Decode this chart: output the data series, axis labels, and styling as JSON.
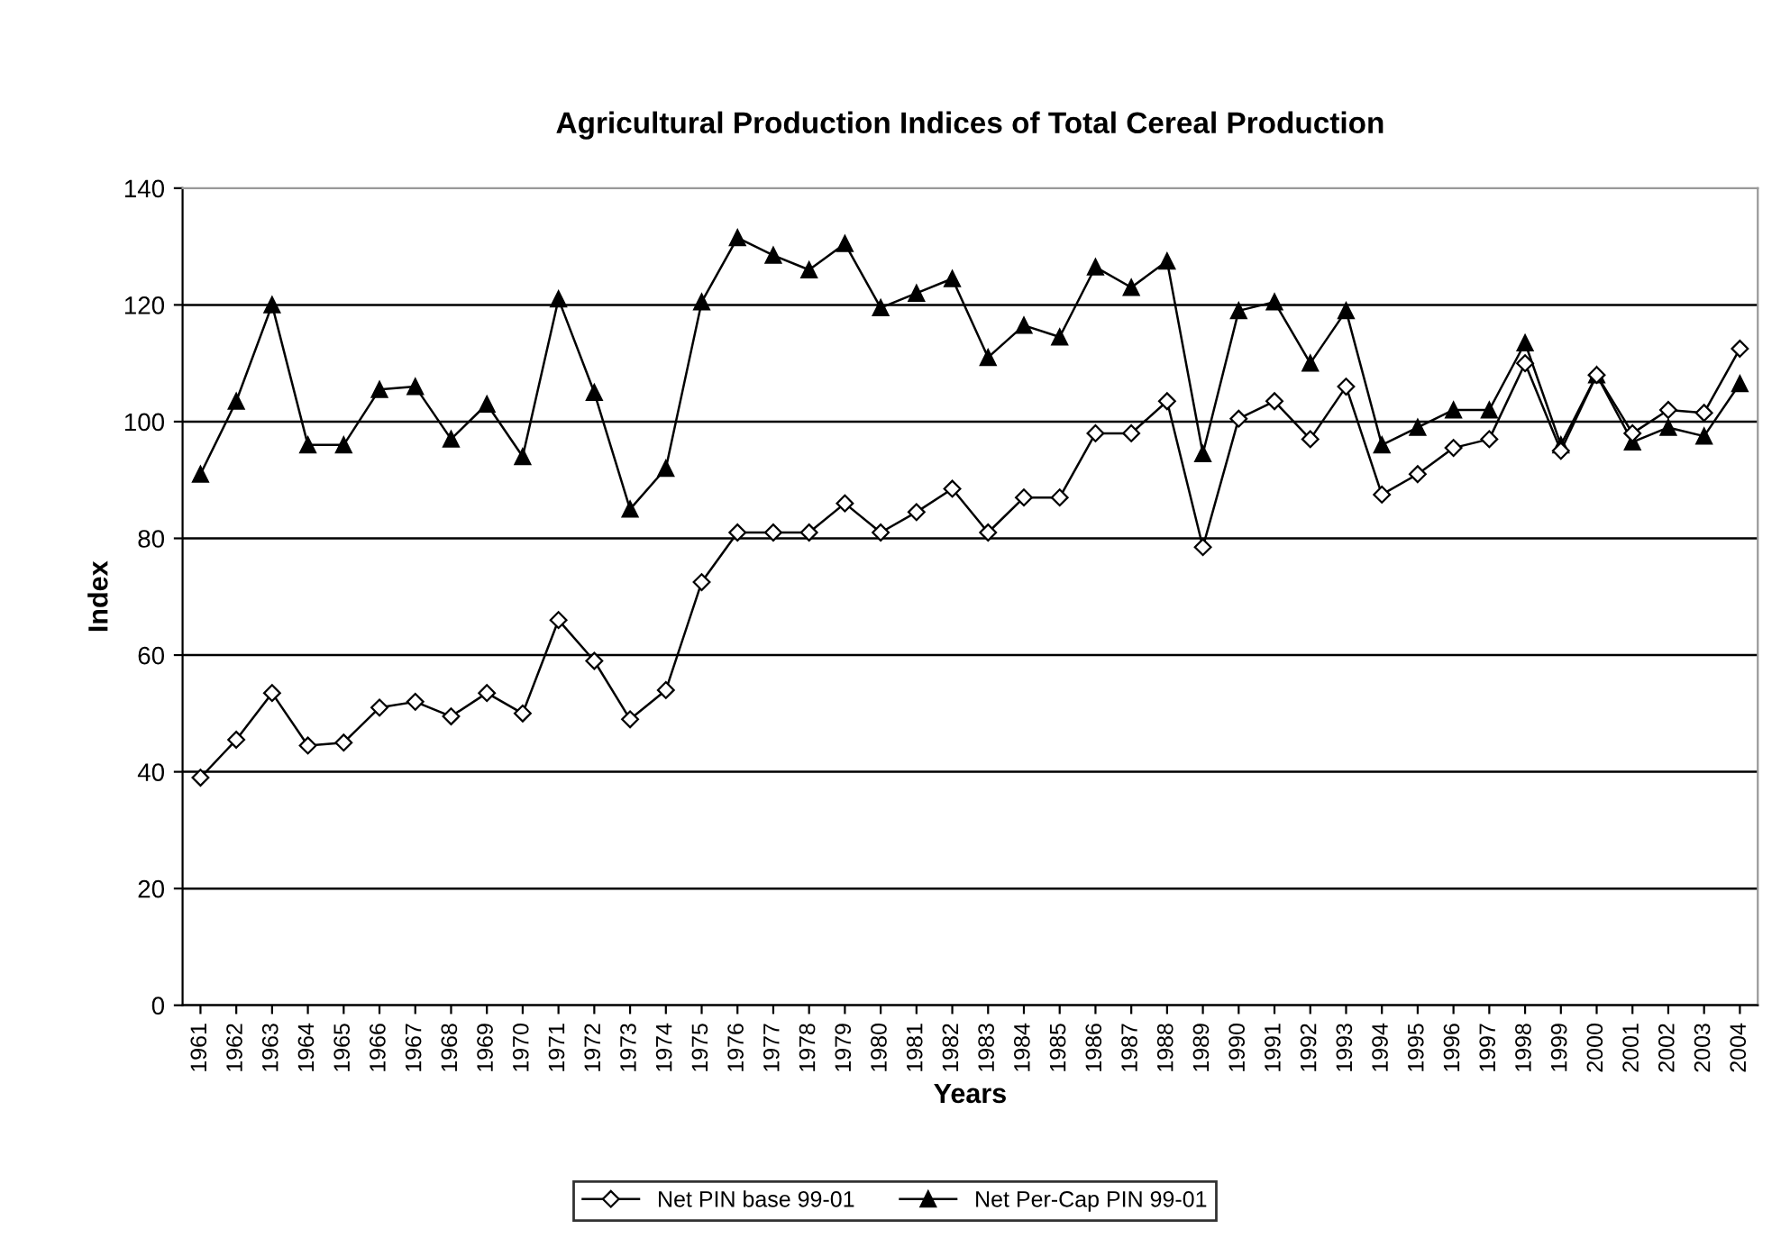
{
  "chart_data": {
    "type": "line",
    "title": "Agricultural Production Indices of Total Cereal Production",
    "xlabel": "Years",
    "ylabel": "Index",
    "categories": [
      "1961",
      "1962",
      "1963",
      "1964",
      "1965",
      "1966",
      "1967",
      "1968",
      "1969",
      "1970",
      "1971",
      "1972",
      "1973",
      "1974",
      "1975",
      "1976",
      "1977",
      "1978",
      "1979",
      "1980",
      "1981",
      "1982",
      "1983",
      "1984",
      "1985",
      "1986",
      "1987",
      "1988",
      "1989",
      "1990",
      "1991",
      "1992",
      "1993",
      "1994",
      "1995",
      "1996",
      "1997",
      "1998",
      "1999",
      "2000",
      "2001",
      "2002",
      "2003",
      "2004"
    ],
    "series": [
      {
        "name": "Net PIN base 99-01",
        "color": "#000000",
        "marker": "diamond",
        "values": [
          39,
          45.5,
          53.5,
          44.5,
          45,
          51,
          52,
          49.5,
          53.5,
          50,
          66,
          59,
          49,
          54,
          72.5,
          81,
          81,
          81,
          86,
          81,
          84.5,
          88.5,
          81,
          87,
          87,
          98,
          98,
          103.5,
          78.5,
          100.5,
          103.5,
          97,
          106,
          87.5,
          91,
          95.5,
          97,
          110,
          95,
          108,
          98,
          102,
          101.5,
          112.5
        ]
      },
      {
        "name": "Net Per-Cap PIN 99-01",
        "color": "#000000",
        "marker": "triangle",
        "values": [
          91,
          103.5,
          120,
          96,
          96,
          105.5,
          106,
          97,
          103,
          94,
          121,
          105,
          85,
          92,
          120.5,
          131.5,
          128.5,
          126,
          130.5,
          119.5,
          122,
          124.5,
          111,
          116.5,
          114.5,
          126.5,
          123,
          127.5,
          94.5,
          119,
          120.5,
          110,
          119,
          96,
          99,
          102,
          102,
          113.5,
          96,
          108,
          96.5,
          99,
          97.5,
          106.5
        ]
      }
    ],
    "ylim": [
      0,
      140
    ],
    "yticks": [
      0,
      20,
      40,
      60,
      80,
      100,
      120,
      140
    ],
    "grid": "y",
    "legend": "bottom",
    "line_style": "solid"
  }
}
